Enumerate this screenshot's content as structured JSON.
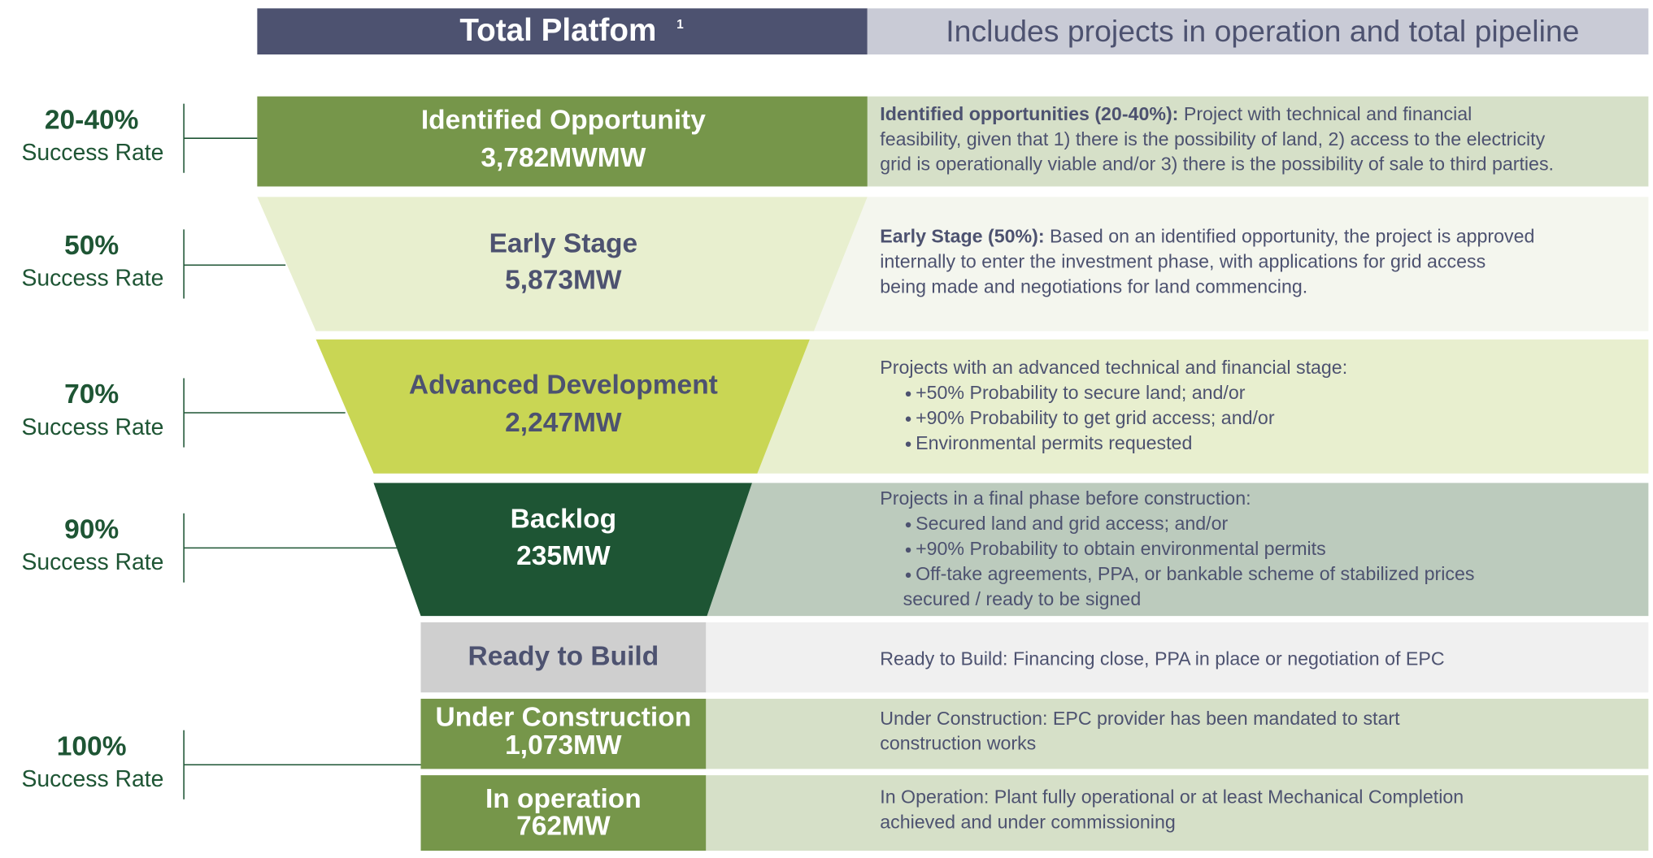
{
  "header": {
    "title": "Total Platfom",
    "footnote": "1",
    "subtitle": "Includes projects in operation and total pipeline"
  },
  "rates": [
    {
      "percent": "20-40%",
      "label": "Success Rate"
    },
    {
      "percent": "50%",
      "label": "Success Rate"
    },
    {
      "percent": "70%",
      "label": "Success Rate"
    },
    {
      "percent": "90%",
      "label": "Success Rate"
    },
    {
      "percent": "100%",
      "label": "Success Rate"
    }
  ],
  "stages": [
    {
      "name": "Identified Opportunity",
      "value": "3,782MWMW",
      "description": {
        "bold": "Identified opportunities (20-40%):",
        "lines": [
          "Project with technical and financial",
          "feasibility, given that 1) there is the possibility of land,  2) access to the electricity",
          "grid is operationally viable and/or 3) there is the possibility of sale to third parties."
        ]
      }
    },
    {
      "name": "Early Stage",
      "value": "5,873MW",
      "description": {
        "bold": "Early Stage (50%):",
        "lines": [
          "Based on an identified opportunity, the project is approved",
          "internally to enter the investment phase, with applications for grid access",
          "being made and negotiations for land commencing."
        ]
      }
    },
    {
      "name": "Advanced Development",
      "value": "2,247MW",
      "description": {
        "lines": [
          "Projects with an advanced technical and financial stage:"
        ],
        "bullets": [
          [
            "+50% Probability to secure land; and/or"
          ],
          [
            "+90% Probability to get grid access; and/or"
          ],
          [
            "Environmental permits requested"
          ]
        ]
      }
    },
    {
      "name": "Backlog",
      "value": "235MW",
      "description": {
        "lines": [
          "Projects in a final phase before construction:"
        ],
        "bullets": [
          [
            "Secured land and grid access; and/or"
          ],
          [
            "+90% Probability to obtain environmental permits"
          ],
          [
            "Off-take agreements, PPA, or bankable scheme of stabilized prices",
            "secured / ready to be signed"
          ]
        ]
      }
    },
    {
      "name": "Ready to Build",
      "description": {
        "lines": [
          "Ready to Build: Financing close, PPA in place or negotiation of EPC"
        ]
      }
    },
    {
      "name": "Under Construction",
      "value": "1,073MW",
      "description": {
        "lines": [
          "Under Construction: EPC provider has been mandated to start",
          "construction works"
        ]
      }
    },
    {
      "name": "In operation",
      "value": "762MW",
      "description": {
        "lines": [
          "In Operation: Plant fully operational or at least Mechanical Completion",
          "achieved and under commissioning"
        ]
      }
    }
  ]
}
